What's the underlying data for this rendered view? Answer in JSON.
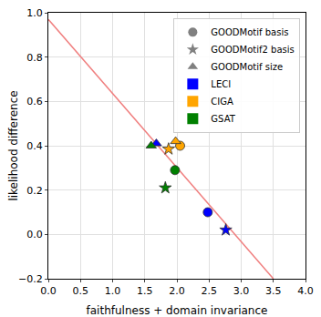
{
  "chart_data": {
    "type": "scatter",
    "x_label": "faithfulness + domain invariance",
    "y_label": "likelihood difference",
    "xlim": [
      0,
      4
    ],
    "ylim": [
      -0.2,
      1.0
    ],
    "xticks": [
      {
        "value": 0,
        "label": "0.0"
      },
      {
        "value": 0.5,
        "label": "0.5"
      },
      {
        "value": 1,
        "label": "1.0"
      },
      {
        "value": 1.5,
        "label": "1.5"
      },
      {
        "value": 2,
        "label": "2.0"
      },
      {
        "value": 2.5,
        "label": "2.5"
      },
      {
        "value": 3,
        "label": "3.0"
      },
      {
        "value": 3.5,
        "label": "3.5"
      },
      {
        "value": 4,
        "label": "4.0"
      }
    ],
    "yticks": [
      {
        "value": -0.2,
        "label": "−0.2"
      },
      {
        "value": 0,
        "label": "0.0"
      },
      {
        "value": 0.2,
        "label": "0.2"
      },
      {
        "value": 0.4,
        "label": "0.4"
      },
      {
        "value": 0.6,
        "label": "0.6"
      },
      {
        "value": 0.8,
        "label": "0.8"
      },
      {
        "value": 1.0,
        "label": "1.0"
      }
    ],
    "grid": true,
    "legend": "upper right",
    "datasets": [
      {
        "name": "GOODMotif basis",
        "marker": "circle",
        "color": "#808080"
      },
      {
        "name": "GOODMotif2 basis",
        "marker": "star",
        "color": "#808080"
      },
      {
        "name": "GOODMotif size",
        "marker": "triangle-up",
        "color": "#808080"
      }
    ],
    "series": [
      {
        "name": "LECI",
        "color": "#0000ff",
        "x": [
          2.48,
          2.76,
          1.68
        ],
        "values": [
          0.1,
          0.02,
          0.41
        ]
      },
      {
        "name": "CIGA",
        "color": "#ffa500",
        "x": [
          2.05,
          1.87,
          1.98
        ],
        "values": [
          0.4,
          0.385,
          0.42
        ]
      },
      {
        "name": "GSAT",
        "color": "#008000",
        "x": [
          1.97,
          1.82,
          1.6
        ],
        "values": [
          0.29,
          0.21,
          0.4
        ]
      }
    ],
    "fit_line": {
      "color": "#f08080",
      "x": [
        0,
        3.5
      ],
      "values": [
        0.97,
        -0.2
      ]
    }
  }
}
